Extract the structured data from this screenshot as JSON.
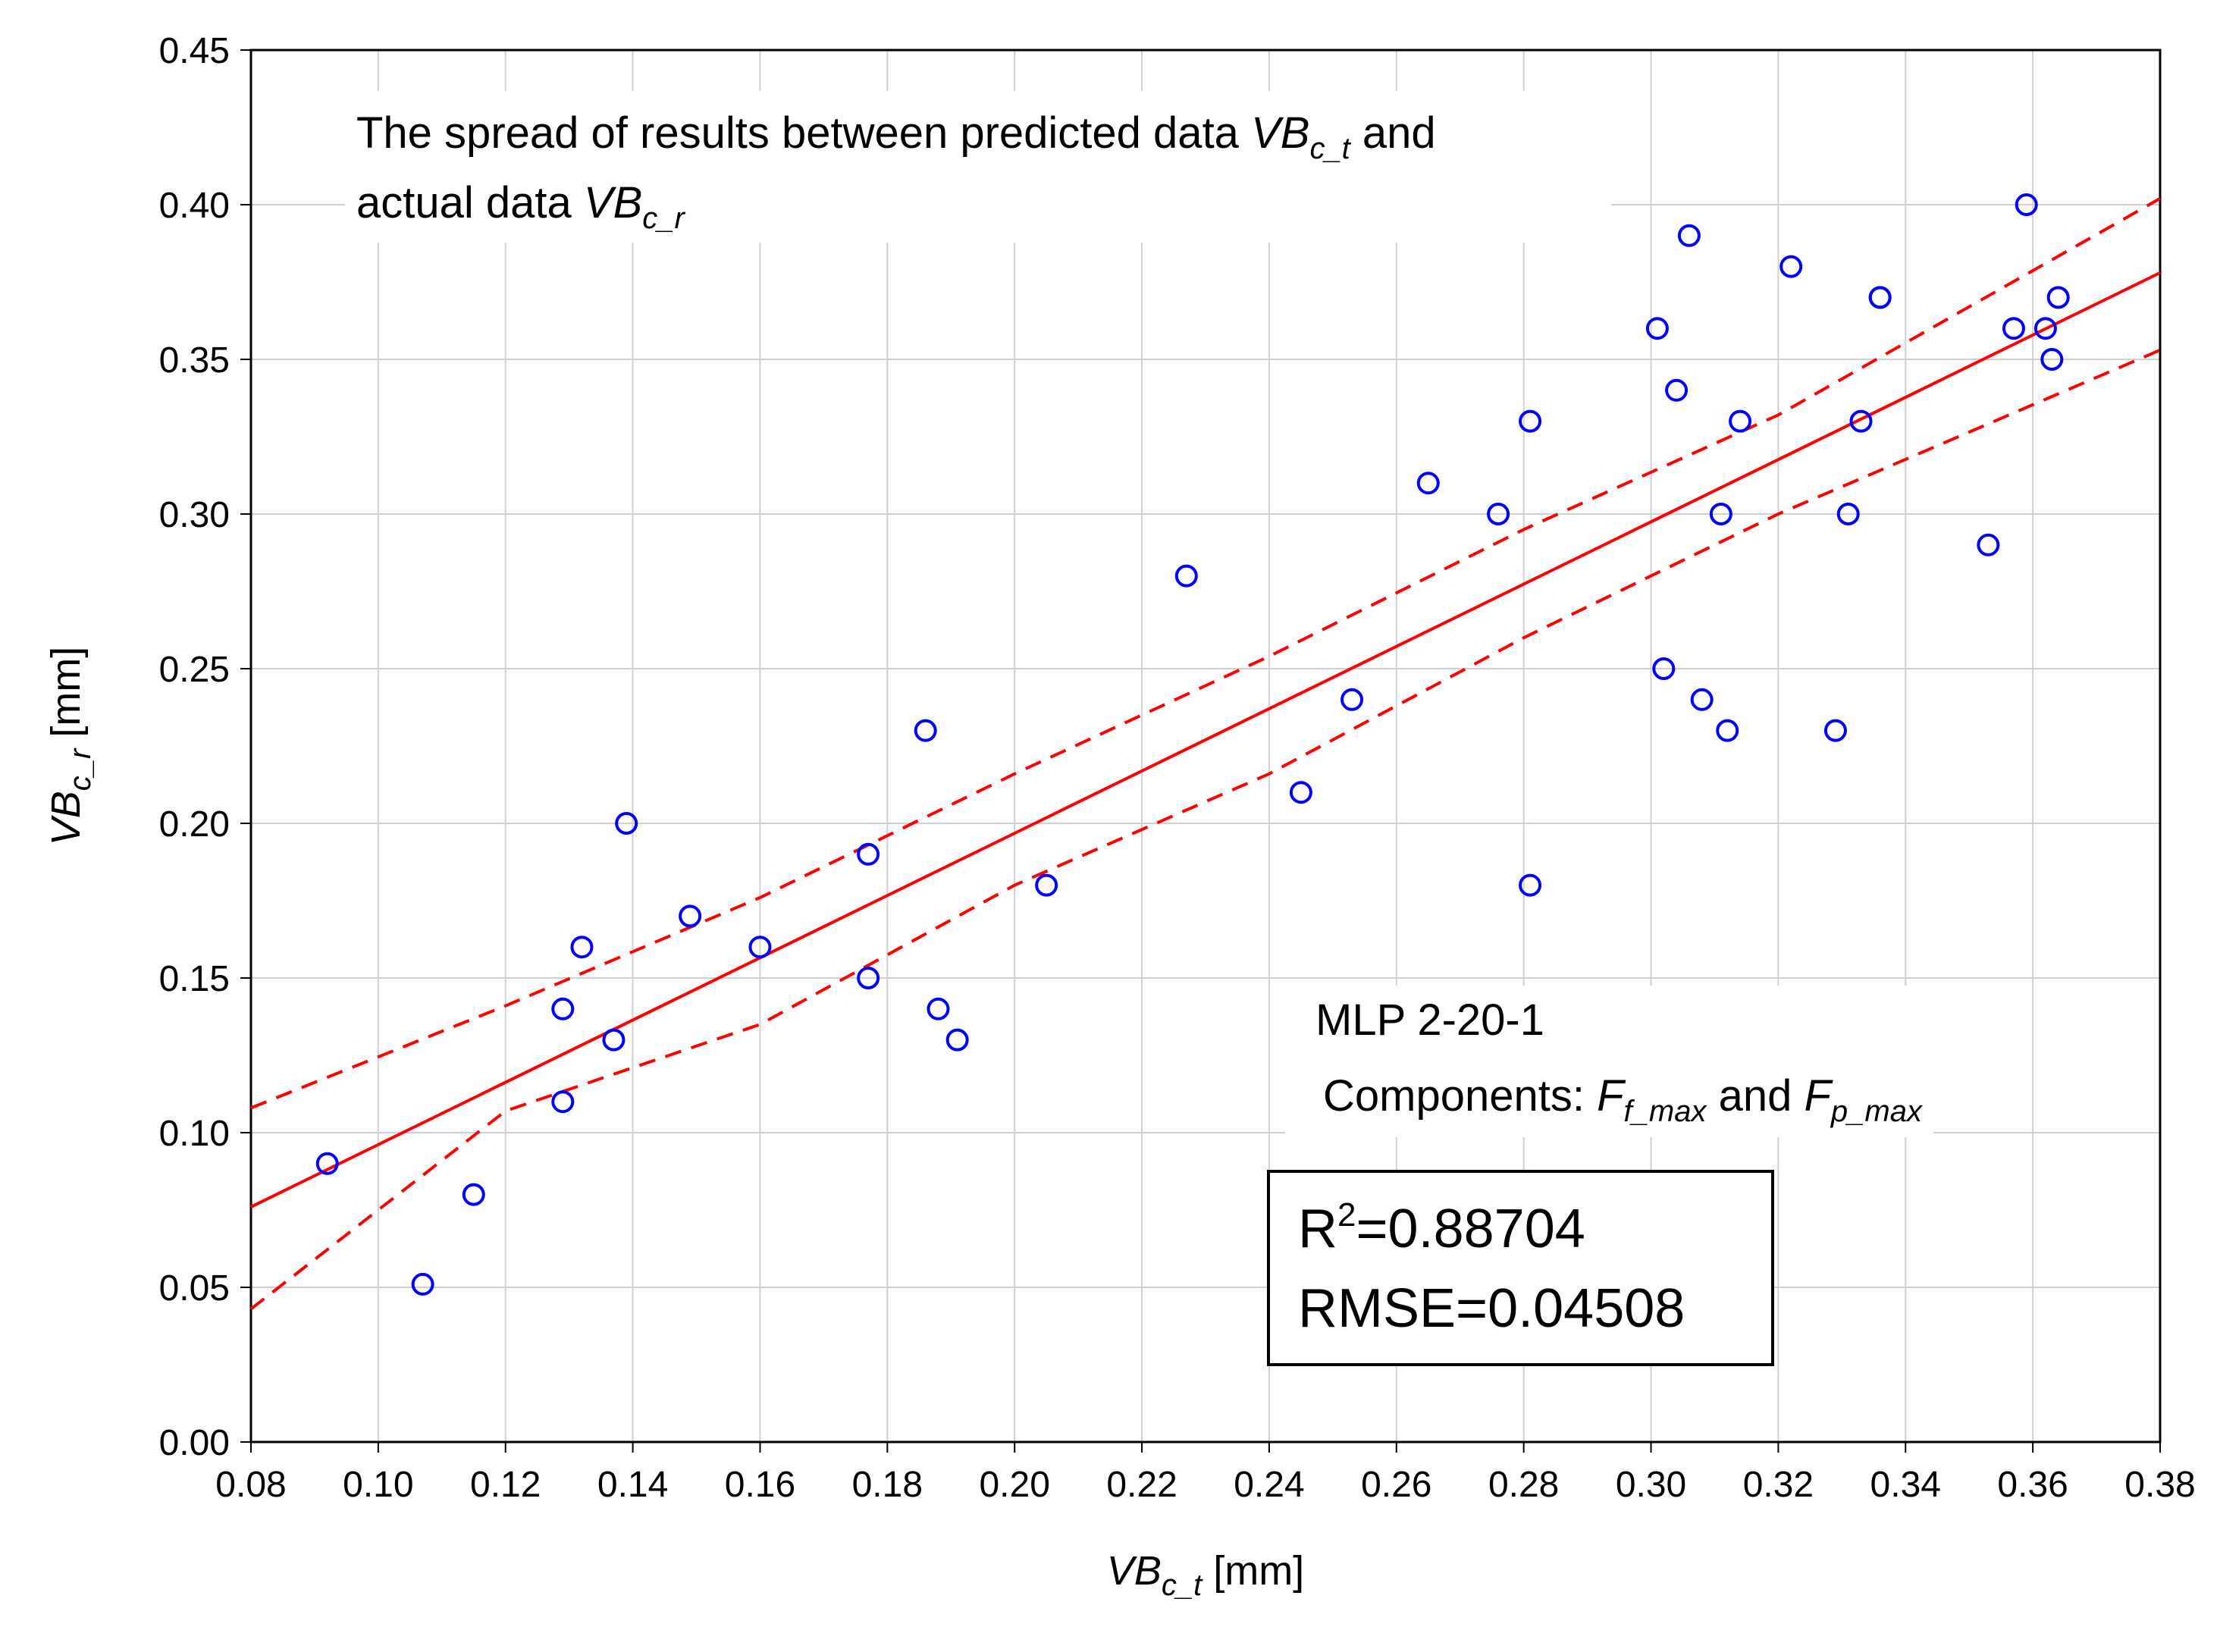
{
  "chart_data": {
    "type": "scatter",
    "title_parts": {
      "line1_prefix": "The spread of results between predicted data ",
      "var_t": "VB",
      "var_t_sub": "c_t",
      "line1_suffix": " and",
      "line2_prefix": "actual data ",
      "var_r": "VB",
      "var_r_sub": "c_r"
    },
    "xlabel": {
      "var": "VB",
      "sub": "c_t",
      "unit": " [mm]"
    },
    "ylabel": {
      "var": "VB",
      "sub": "c_r",
      "unit": " [mm]"
    },
    "xlim": [
      0.08,
      0.38
    ],
    "ylim": [
      0.0,
      0.45
    ],
    "x_ticks": [
      "0.08",
      "0.10",
      "0.12",
      "0.14",
      "0.16",
      "0.18",
      "0.20",
      "0.22",
      "0.24",
      "0.26",
      "0.28",
      "0.30",
      "0.32",
      "0.34",
      "0.36",
      "0.38"
    ],
    "y_ticks": [
      "0.00",
      "0.05",
      "0.10",
      "0.15",
      "0.20",
      "0.25",
      "0.30",
      "0.35",
      "0.40",
      "0.45"
    ],
    "grid": true,
    "points": [
      [
        0.092,
        0.09
      ],
      [
        0.107,
        0.051
      ],
      [
        0.115,
        0.08
      ],
      [
        0.129,
        0.14
      ],
      [
        0.129,
        0.11
      ],
      [
        0.132,
        0.16
      ],
      [
        0.137,
        0.13
      ],
      [
        0.139,
        0.2
      ],
      [
        0.149,
        0.17
      ],
      [
        0.16,
        0.16
      ],
      [
        0.177,
        0.15
      ],
      [
        0.177,
        0.19
      ],
      [
        0.186,
        0.23
      ],
      [
        0.188,
        0.14
      ],
      [
        0.191,
        0.13
      ],
      [
        0.205,
        0.18
      ],
      [
        0.227,
        0.28
      ],
      [
        0.245,
        0.21
      ],
      [
        0.253,
        0.24
      ],
      [
        0.265,
        0.31
      ],
      [
        0.276,
        0.3
      ],
      [
        0.281,
        0.33
      ],
      [
        0.281,
        0.18
      ],
      [
        0.301,
        0.36
      ],
      [
        0.302,
        0.25
      ],
      [
        0.304,
        0.34
      ],
      [
        0.306,
        0.39
      ],
      [
        0.308,
        0.24
      ],
      [
        0.311,
        0.3
      ],
      [
        0.312,
        0.23
      ],
      [
        0.314,
        0.33
      ],
      [
        0.322,
        0.38
      ],
      [
        0.329,
        0.23
      ],
      [
        0.331,
        0.3
      ],
      [
        0.333,
        0.33
      ],
      [
        0.336,
        0.37
      ],
      [
        0.336,
        0.37
      ],
      [
        0.353,
        0.29
      ],
      [
        0.357,
        0.36
      ],
      [
        0.359,
        0.4
      ],
      [
        0.362,
        0.36
      ],
      [
        0.363,
        0.35
      ],
      [
        0.364,
        0.37
      ]
    ],
    "fit_line": {
      "x": [
        0.08,
        0.38
      ],
      "y": [
        0.076,
        0.378
      ]
    },
    "upper_band": {
      "x": [
        0.08,
        0.12,
        0.16,
        0.2,
        0.24,
        0.28,
        0.32,
        0.38
      ],
      "y": [
        0.108,
        0.141,
        0.176,
        0.216,
        0.254,
        0.295,
        0.332,
        0.402
      ]
    },
    "lower_band": {
      "x": [
        0.08,
        0.12,
        0.16,
        0.2,
        0.24,
        0.28,
        0.32,
        0.38
      ],
      "y": [
        0.043,
        0.107,
        0.135,
        0.18,
        0.216,
        0.26,
        0.3,
        0.353
      ]
    },
    "colors": {
      "points": "#0000ff",
      "fit": "#ff0000",
      "grid": "#d0d0d0",
      "axis": "#000000"
    },
    "model": {
      "name": "MLP 2-20-1",
      "components_prefix": "Components: ",
      "comp1_var": "F",
      "comp1_sub": "f_max",
      "comp_join": " and ",
      "comp2_var": "F",
      "comp2_sub": "p_max"
    },
    "stats": {
      "r2_label": "R",
      "r2_sup": "2",
      "r2_value": "=0.88704",
      "rmse": "RMSE=0.04508"
    }
  }
}
